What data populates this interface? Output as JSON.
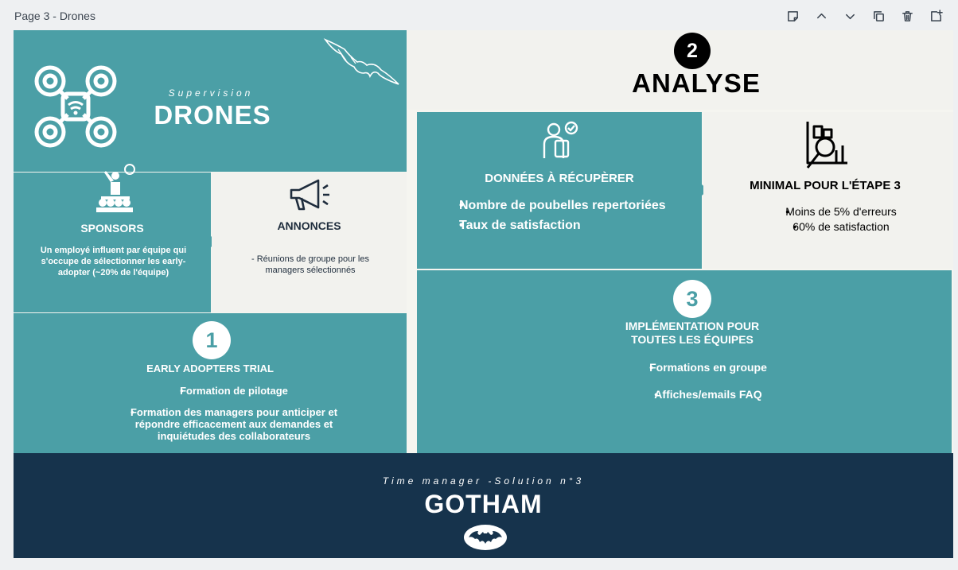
{
  "topbar": {
    "page_label": "Page 3 - Drones",
    "icons": [
      "note-icon",
      "chevron-up-icon",
      "chevron-down-icon",
      "copy-icon",
      "trash-icon",
      "add-page-icon"
    ]
  },
  "header_block": {
    "supervision": "Supervision",
    "title": "DRONES"
  },
  "sponsors": {
    "title": "SPONSORS",
    "text": "Un employé influent par équipe qui s'occupe de sélectionner les early-adopter (~20% de l'équipe)"
  },
  "annonces": {
    "title": "ANNONCES",
    "text": "- Réunions de groupe pour les managers sélectionnés"
  },
  "step1": {
    "number": "1",
    "title": "EARLY ADOPTERS TRIAL",
    "items": [
      "Formation de pilotage",
      "Formation des managers pour anticiper et répondre efficacement aux demandes et inquiétudes des collaborateurs"
    ]
  },
  "step2": {
    "number": "2",
    "title": "ANALYSE"
  },
  "donnees": {
    "title": "DONNÉES À RÉCUPÈRER",
    "items": [
      "Nombre de poubelles repertoriées",
      "Taux de satisfaction"
    ]
  },
  "minimal": {
    "title": "MINIMAL POUR L'ÉTAPE 3",
    "items": [
      "Moins de 5% d'erreurs",
      "60% de satisfaction"
    ]
  },
  "step3": {
    "number": "3",
    "title_line1": "IMPLÉMENTATION POUR",
    "title_line2": "TOUTES LES ÉQUIPES",
    "items": [
      "Formations en groupe",
      "Affiches/emails FAQ"
    ]
  },
  "footer": {
    "subtitle": "Time manager -Solution n°3",
    "title": "GOTHAM"
  },
  "colors": {
    "teal": "#4b9fa6",
    "cream": "#f2f2ee",
    "navy": "#16334c"
  }
}
